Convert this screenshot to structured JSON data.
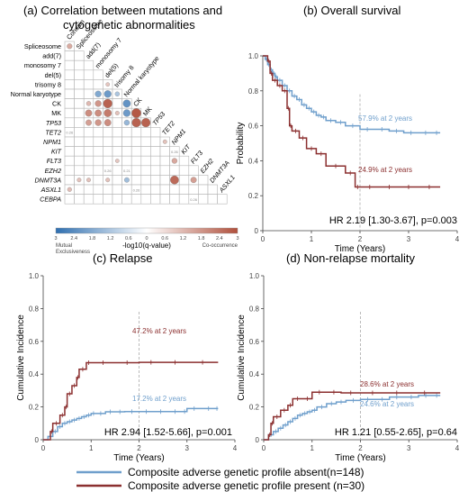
{
  "colors": {
    "absent": "#6f9fcc",
    "present": "#8b2f2f",
    "blue_strong": "#2f6fb0",
    "red_strong": "#b0503c"
  },
  "legend": {
    "absent_label": "Composite adverse genetic profile absent(n=148)",
    "present_label": "Composite adverse genetic profile present (n=30)"
  },
  "chart_data": [
    {
      "id": "a",
      "type": "heatmap",
      "title": "(a) Correlation between mutations and cytogenetic abnormalities",
      "title_line1": "(a) Correlation between mutations and",
      "title_line2": "cytogenetic abnormalities",
      "labels": [
        "Cohesin",
        "Spliceosome",
        "add(7)",
        "monosomy 7",
        "del(5)",
        "trisomy 8",
        "Normal karyotype",
        "CK",
        "MK",
        "TP53",
        "TET2",
        "NPM1",
        "KIT",
        "FLT3",
        "EZH2",
        "DNMT3A",
        "ASXL1",
        "CEBPA"
      ],
      "colorbar": {
        "label": "-log10(q-value)",
        "ticks": [
          "3",
          "2.4",
          "1.8",
          "1.2",
          "0.6",
          "0",
          "0.6",
          "1.2",
          "1.8",
          "2.4",
          "3"
        ],
        "left_note": "Mutual Exclusiveness",
        "left_note_l1": "Mutual",
        "left_note_l2": "Exclusiveness",
        "right_note": "Co-occurrence"
      },
      "cells": [
        {
          "row": "Spliceosome",
          "col": "Cohesin",
          "sig": 0.9,
          "text": "",
          "dir": "co"
        },
        {
          "row": "trisomy 8",
          "col": "del(5)",
          "sig": 0.3,
          "text": "",
          "dir": "co"
        },
        {
          "row": "Normal karyotype",
          "col": "monosomy 7",
          "sig": 1.4,
          "text": "",
          "dir": "ex"
        },
        {
          "row": "Normal karyotype",
          "col": "del(5)",
          "sig": 1.8,
          "text": "",
          "dir": "ex"
        },
        {
          "row": "Normal karyotype",
          "col": "trisomy 8",
          "sig": 0.6,
          "text": "",
          "dir": "ex"
        },
        {
          "row": "CK",
          "col": "add(7)",
          "sig": 0.6,
          "text": "",
          "dir": "co"
        },
        {
          "row": "CK",
          "col": "monosomy 7",
          "sig": 1.4,
          "text": "",
          "dir": "co"
        },
        {
          "row": "CK",
          "col": "del(5)",
          "sig": 2.6,
          "text": "",
          "dir": "co"
        },
        {
          "row": "CK",
          "col": "Normal karyotype",
          "sig": 2.0,
          "text": "",
          "dir": "ex"
        },
        {
          "row": "MK",
          "col": "add(7)",
          "sig": 1.6,
          "text": "",
          "dir": "co"
        },
        {
          "row": "MK",
          "col": "monosomy 7",
          "sig": 1.6,
          "text": "",
          "dir": "co"
        },
        {
          "row": "MK",
          "col": "del(5)",
          "sig": 2.0,
          "text": "",
          "dir": "co"
        },
        {
          "row": "MK",
          "col": "trisomy 8",
          "sig": 0.4,
          "text": "",
          "dir": "co"
        },
        {
          "row": "MK",
          "col": "Normal karyotype",
          "sig": 1.8,
          "text": "",
          "dir": "ex"
        },
        {
          "row": "MK",
          "col": "CK",
          "sig": 2.8,
          "text": "",
          "dir": "co"
        },
        {
          "row": "TP53",
          "col": "add(7)",
          "sig": 1.2,
          "text": "",
          "dir": "co"
        },
        {
          "row": "TP53",
          "col": "monosomy 7",
          "sig": 1.4,
          "text": "",
          "dir": "co"
        },
        {
          "row": "TP53",
          "col": "del(5)",
          "sig": 1.6,
          "text": "",
          "dir": "co"
        },
        {
          "row": "TP53",
          "col": "Normal karyotype",
          "sig": 1.0,
          "text": "",
          "dir": "ex"
        },
        {
          "row": "TP53",
          "col": "CK",
          "sig": 2.6,
          "text": "",
          "dir": "co"
        },
        {
          "row": "TP53",
          "col": "MK",
          "sig": 2.6,
          "text": "",
          "dir": "co"
        },
        {
          "row": "TET2",
          "col": "Cohesin",
          "sig": 0.1,
          "text": "0.26",
          "dir": "co"
        },
        {
          "row": "NPM1",
          "col": "TET2",
          "sig": 0.4,
          "text": "",
          "dir": "co"
        },
        {
          "row": "KIT",
          "col": "NPM1",
          "sig": 0.1,
          "text": "0.26",
          "dir": "co"
        },
        {
          "row": "FLT3",
          "col": "trisomy 8",
          "sig": 0.3,
          "text": "",
          "dir": "co"
        },
        {
          "row": "FLT3",
          "col": "NPM1",
          "sig": 1.0,
          "text": "",
          "dir": "co"
        },
        {
          "row": "EZH2",
          "col": "del(5)",
          "sig": 0.1,
          "text": "0.26",
          "dir": "co"
        },
        {
          "row": "EZH2",
          "col": "Normal karyotype",
          "sig": 0.1,
          "text": "0.21",
          "dir": "co"
        },
        {
          "row": "DNMT3A",
          "col": "Spliceosome",
          "sig": 0.4,
          "text": "",
          "dir": "co"
        },
        {
          "row": "DNMT3A",
          "col": "add(7)",
          "sig": 0.4,
          "text": "",
          "dir": "co"
        },
        {
          "row": "DNMT3A",
          "col": "del(5)",
          "sig": 0.4,
          "text": "",
          "dir": "co"
        },
        {
          "row": "DNMT3A",
          "col": "Normal karyotype",
          "sig": 0.8,
          "text": "",
          "dir": "ex"
        },
        {
          "row": "DNMT3A",
          "col": "NPM1",
          "sig": 2.4,
          "text": "",
          "dir": "co"
        },
        {
          "row": "DNMT3A",
          "col": "FLT3",
          "sig": 1.2,
          "text": "",
          "dir": "co"
        },
        {
          "row": "ASXL1",
          "col": "Cohesin",
          "sig": 0.5,
          "text": "",
          "dir": "co"
        },
        {
          "row": "ASXL1",
          "col": "CK",
          "sig": 0.1,
          "text": "0.26",
          "dir": "co"
        },
        {
          "row": "CEBPA",
          "col": "FLT3",
          "sig": 0.1,
          "text": "0.26",
          "dir": "co"
        }
      ]
    },
    {
      "id": "b",
      "type": "line",
      "title": "(b) Overall survival",
      "xlabel": "Time (Years)",
      "ylabel": "Probability",
      "xlim": [
        0,
        4
      ],
      "ylim": [
        0,
        1
      ],
      "xticks": [
        "0",
        "1",
        "2",
        "3",
        "4"
      ],
      "yticks": [
        "0",
        "0.2",
        "0.4",
        "0.6",
        "0.8",
        "1.0"
      ],
      "annotations": [
        "57.9% at 2 years",
        "24.9% at 2 years"
      ],
      "hr_text": "HR 2.19 [1.30-3.67], p=0.003",
      "series": [
        {
          "key": "absent",
          "x": [
            0,
            0.05,
            0.1,
            0.15,
            0.2,
            0.25,
            0.3,
            0.4,
            0.5,
            0.6,
            0.7,
            0.8,
            0.9,
            1.0,
            1.1,
            1.2,
            1.3,
            1.5,
            1.7,
            2.0,
            2.3,
            2.6,
            2.9,
            3.2,
            3.5,
            3.65
          ],
          "y": [
            1.0,
            0.98,
            0.95,
            0.92,
            0.9,
            0.88,
            0.86,
            0.83,
            0.8,
            0.77,
            0.75,
            0.72,
            0.7,
            0.68,
            0.66,
            0.65,
            0.63,
            0.62,
            0.6,
            0.58,
            0.58,
            0.57,
            0.56,
            0.56,
            0.56,
            0.56
          ]
        },
        {
          "key": "present",
          "x": [
            0,
            0.1,
            0.15,
            0.2,
            0.3,
            0.4,
            0.5,
            0.55,
            0.6,
            0.75,
            0.9,
            1.1,
            1.3,
            1.7,
            1.9,
            2.0,
            2.4,
            2.8,
            3.2,
            3.65
          ],
          "y": [
            1.0,
            0.97,
            0.9,
            0.86,
            0.83,
            0.8,
            0.7,
            0.6,
            0.57,
            0.53,
            0.47,
            0.44,
            0.37,
            0.33,
            0.25,
            0.25,
            0.25,
            0.25,
            0.25,
            0.25
          ]
        }
      ]
    },
    {
      "id": "c",
      "type": "line",
      "title": "(c) Relapse",
      "xlabel": "Time (Years)",
      "ylabel": "Cumulative Incidence",
      "xlim": [
        0,
        4
      ],
      "ylim": [
        0,
        1
      ],
      "xticks": [
        "0",
        "1",
        "2",
        "3",
        "4"
      ],
      "yticks": [
        "0",
        "0.2",
        "0.4",
        "0.6",
        "0.8",
        "1.0"
      ],
      "annotations": [
        "47.2% at 2 years",
        "17.2% at 2 years"
      ],
      "hr_text": "HR 2.94 [1.52-5.66], p=0.001",
      "series": [
        {
          "key": "absent",
          "x": [
            0,
            0.1,
            0.2,
            0.3,
            0.4,
            0.5,
            0.6,
            0.7,
            0.8,
            0.9,
            1.0,
            1.1,
            1.3,
            1.5,
            1.7,
            2.0,
            2.3,
            2.6,
            2.9,
            3.0,
            3.3,
            3.6,
            3.65
          ],
          "y": [
            0,
            0.02,
            0.05,
            0.08,
            0.1,
            0.11,
            0.12,
            0.13,
            0.14,
            0.15,
            0.16,
            0.16,
            0.17,
            0.17,
            0.172,
            0.172,
            0.172,
            0.172,
            0.172,
            0.19,
            0.19,
            0.19,
            0.19
          ]
        },
        {
          "key": "present",
          "x": [
            0,
            0.15,
            0.2,
            0.35,
            0.45,
            0.5,
            0.6,
            0.7,
            0.75,
            0.9,
            1.0,
            1.5,
            2.0,
            2.5,
            3.0,
            3.65
          ],
          "y": [
            0,
            0.05,
            0.1,
            0.15,
            0.2,
            0.28,
            0.33,
            0.38,
            0.43,
            0.47,
            0.47,
            0.47,
            0.472,
            0.472,
            0.472,
            0.472
          ]
        }
      ]
    },
    {
      "id": "d",
      "type": "line",
      "title": "(d) Non-relapse mortality",
      "xlabel": "Time (Years)",
      "ylabel": "Cumulative Incidence",
      "xlim": [
        0,
        4
      ],
      "ylim": [
        0,
        1
      ],
      "xticks": [
        "0",
        "1",
        "2",
        "3",
        "4"
      ],
      "yticks": [
        "0",
        "0.2",
        "0.4",
        "0.6",
        "0.8",
        "1.0"
      ],
      "annotations": [
        "28.6% at 2 years",
        "24.6% at 2 years"
      ],
      "hr_text": "HR 1.21 [0.55-2.65], p=0.64",
      "series": [
        {
          "key": "absent",
          "x": [
            0,
            0.1,
            0.2,
            0.3,
            0.4,
            0.5,
            0.6,
            0.7,
            0.8,
            0.9,
            1.0,
            1.1,
            1.3,
            1.5,
            1.7,
            2.0,
            2.3,
            2.6,
            2.9,
            3.2,
            3.5,
            3.65
          ],
          "y": [
            0,
            0.03,
            0.05,
            0.07,
            0.09,
            0.11,
            0.13,
            0.15,
            0.16,
            0.17,
            0.18,
            0.2,
            0.22,
            0.23,
            0.24,
            0.246,
            0.246,
            0.26,
            0.26,
            0.27,
            0.27,
            0.27
          ]
        },
        {
          "key": "present",
          "x": [
            0,
            0.1,
            0.15,
            0.2,
            0.35,
            0.5,
            0.6,
            0.8,
            1.0,
            1.3,
            1.6,
            2.0,
            2.5,
            3.0,
            3.65
          ],
          "y": [
            0,
            0.03,
            0.1,
            0.14,
            0.18,
            0.21,
            0.25,
            0.25,
            0.29,
            0.29,
            0.286,
            0.286,
            0.286,
            0.286,
            0.286
          ]
        }
      ]
    }
  ]
}
